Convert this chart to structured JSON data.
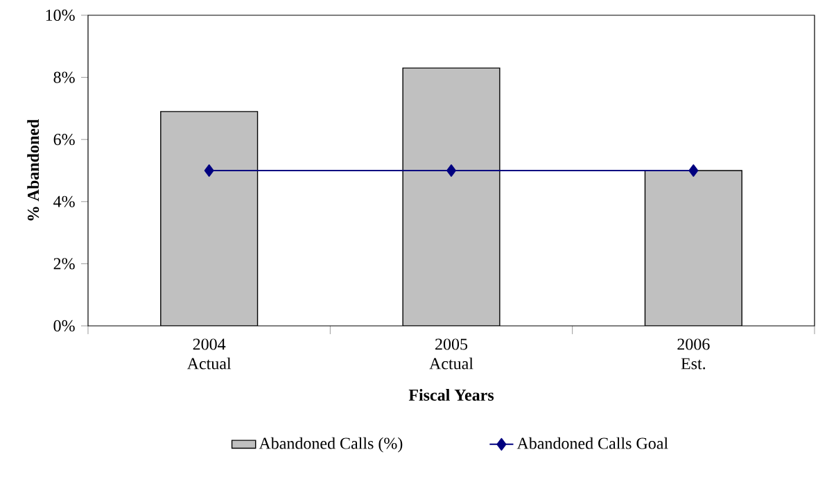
{
  "chart_data": {
    "type": "bar",
    "xlabel": "Fiscal Years",
    "ylabel": "% Abandoned",
    "categories": [
      "2004 Actual",
      "2005 Actual",
      "2006 Est."
    ],
    "series": [
      {
        "name": "Abandoned Calls (%)",
        "color": "#c0c0c0",
        "values": [
          6.9,
          8.3,
          5.0
        ]
      },
      {
        "name": "Abandoned Calls Goal",
        "type": "line",
        "color": "#000080",
        "marker": "diamond",
        "values": [
          5,
          5,
          5
        ]
      }
    ],
    "ylim": [
      0,
      10
    ],
    "yticks": [
      {
        "value": 0,
        "label": "0%"
      },
      {
        "value": 2,
        "label": "2%"
      },
      {
        "value": 4,
        "label": "4%"
      },
      {
        "value": 6,
        "label": "6%"
      },
      {
        "value": 8,
        "label": "8%"
      },
      {
        "value": 10,
        "label": "10%"
      }
    ],
    "grid": false,
    "legend": "bottom"
  }
}
